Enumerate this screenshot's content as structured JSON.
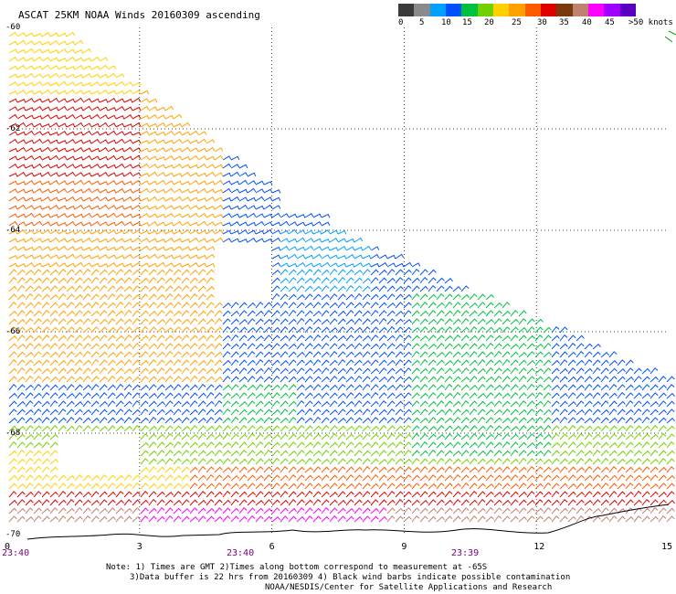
{
  "title": "ASCAT 25KM NOAA Winds 20160309 ascending",
  "colorbar": {
    "colors": [
      "#3a3a3a",
      "#8a8a8a",
      "#00a0ff",
      "#0050ff",
      "#00c040",
      "#70d000",
      "#ffd000",
      "#ffa000",
      "#ff5a00",
      "#e00000",
      "#7a3a10",
      "#c08070",
      "#ff00ff",
      "#a000ff",
      "#5a00c0"
    ],
    "labels": [
      "0",
      "5",
      "10",
      "15",
      "20",
      "25",
      "30",
      "35",
      "40",
      "45",
      ">50 knots"
    ]
  },
  "latitude_labels": [
    "-60",
    "-62",
    "-64",
    "-66",
    "-68",
    "-70"
  ],
  "longitude_labels": [
    "0",
    "3",
    "6",
    "9",
    "12",
    "15"
  ],
  "time_labels": [
    "23:40",
    "23:40",
    "23:39"
  ],
  "notes": [
    "Note: 1) Times are GMT 2)Times along bottom correspond to measurement at -65S",
    "3)Data buffer is 22 hrs from 20160309 4) Black wind barbs indicate possible contamination",
    "NOAA/NESDIS/Center for Satellite Applications and Research"
  ],
  "map": {
    "grid": "dotted",
    "lat_range": [
      -70,
      -60
    ],
    "lon_range": [
      0,
      15
    ],
    "projection": "lat-lon",
    "wind_speed_units": "knots"
  }
}
